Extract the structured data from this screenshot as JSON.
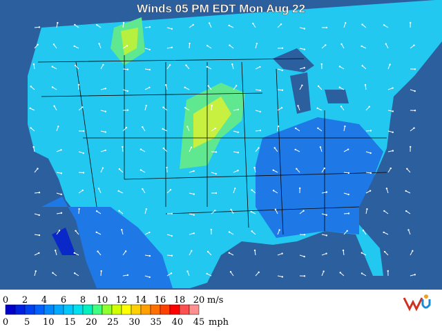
{
  "title": "Winds 05 PM EDT Mon Aug 22",
  "legend": {
    "ms_labels": [
      0,
      2,
      4,
      6,
      8,
      10,
      12,
      14,
      16,
      18,
      20
    ],
    "ms_unit": "m/s",
    "mph_labels": [
      0,
      5,
      10,
      15,
      20,
      25,
      30,
      35,
      40,
      45
    ],
    "mph_unit": "mph",
    "colors": [
      "#0000c8",
      "#0020e0",
      "#0040f0",
      "#0060ff",
      "#0088ff",
      "#00a8ff",
      "#00c8ff",
      "#00e0f0",
      "#00f0c0",
      "#40ff80",
      "#90ff30",
      "#d0ff00",
      "#ffff00",
      "#ffd000",
      "#ffa000",
      "#ff7000",
      "#ff4000",
      "#ff0000",
      "#ff5050",
      "#ff9090"
    ]
  }
}
